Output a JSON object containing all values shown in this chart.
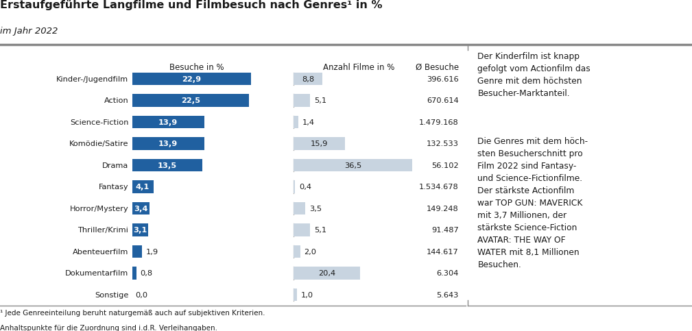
{
  "title": "Erstaufgeführte Langfilme und Filmbesuch nach Genres¹ in %",
  "subtitle": "im Jahr 2022",
  "categories": [
    "Kinder-/Jugendfilm",
    "Action",
    "Science-Fiction",
    "Komödie/Satire",
    "Drama",
    "Fantasy",
    "Horror/Mystery",
    "Thriller/Krimi",
    "Abenteuerfilm",
    "Dokumentarfilm",
    "Sonstige"
  ],
  "besuche_pct": [
    22.9,
    22.5,
    13.9,
    13.9,
    13.5,
    4.1,
    3.4,
    3.1,
    1.9,
    0.8,
    0.0
  ],
  "anzahl_pct": [
    8.8,
    5.1,
    1.4,
    15.9,
    36.5,
    0.4,
    3.5,
    5.1,
    2.0,
    20.4,
    1.0
  ],
  "avg_besuche": [
    "396.616",
    "670.614",
    "1.479.168",
    "132.533",
    "56.102",
    "1.534.678",
    "149.248",
    "91.487",
    "144.617",
    "6.304",
    "5.643"
  ],
  "col1_header": "Besuche in %",
  "col2_header": "Anzahl Filme in %",
  "col3_header": "Ø Besuche",
  "bar_color_dark": "#2060a0",
  "bar_color_light": "#c8d4e0",
  "footnote_line1": "¹ Jede Genreeinteilung beruht naturgemäß auch auf subjektiven Kriterien.",
  "footnote_line2": "Anhaltspunkte für die Zuordnung sind i.d.R. Verleihangaben.",
  "side_text_1": "Der Kinderfilm ist knapp\ngefolgt vom Actionfilm das\nGenre mit dem höchsten\nBesucher-Marktanteil.",
  "side_text_2": "Die Genres mit dem höch-\nsten Besucherschnitt pro\nFilm 2022 sind Fantasy-\nund Science-Fictionfilme.\nDer stärkste Actionfilm\nwar TOP GUN: MAVERICK\nmit 3,7 Millionen, der\nstärkste Science-Fiction\nAVATAR: THE WAY OF\nWATER mit 8,1 Millionen\nBesuchen.",
  "bg_color": "#ffffff",
  "text_color": "#1a1a1a",
  "separator_color": "#888888",
  "separator_color_heavy": "#888888"
}
